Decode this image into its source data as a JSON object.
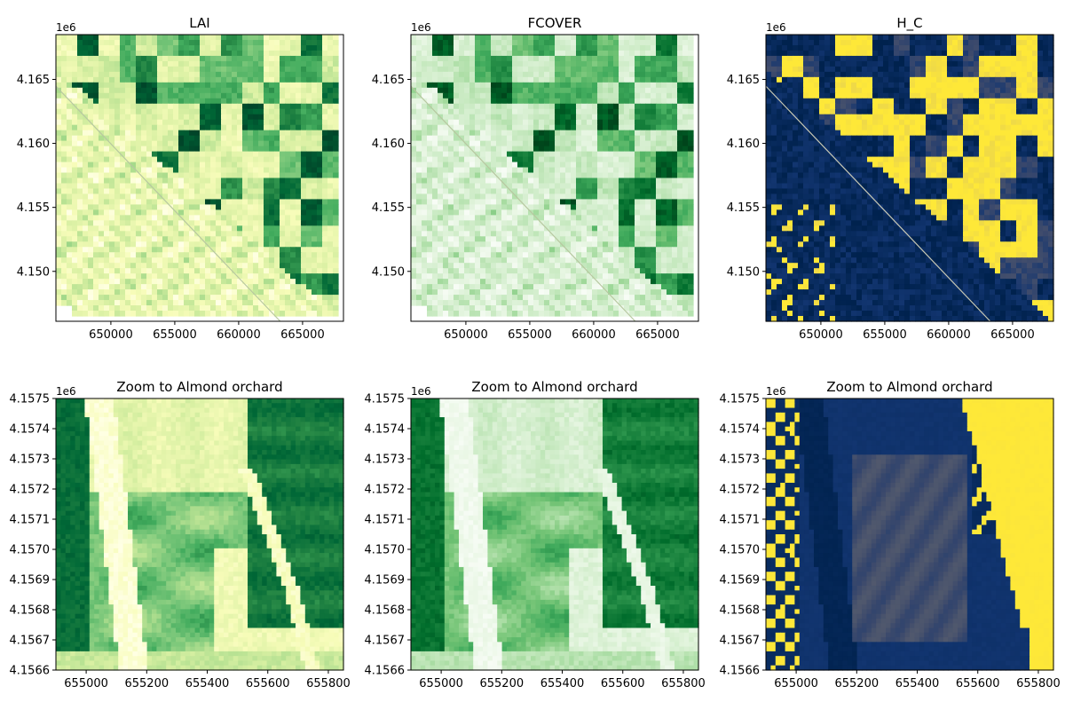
{
  "figure": {
    "background": "#ffffff"
  },
  "colormaps": {
    "YlGn": [
      "#ffffe5",
      "#f7fcb9",
      "#d9f0a3",
      "#addd8e",
      "#78c679",
      "#41ab5d",
      "#238443",
      "#006837",
      "#004529"
    ],
    "Greens": [
      "#f7fcf5",
      "#e5f5e0",
      "#c7e9c0",
      "#a1d99b",
      "#74c476",
      "#41ab5d",
      "#238b45",
      "#006d2c",
      "#00441b"
    ],
    "cividis": [
      "#00224e",
      "#123570",
      "#3b496c",
      "#575d6d",
      "#707173",
      "#8a8678",
      "#a59c74",
      "#c3b369",
      "#e1cc55",
      "#fee838"
    ]
  },
  "chart_data": [
    {
      "type": "heatmap",
      "title": "LAI",
      "colormap": "YlGn",
      "x_ticks": [
        650000,
        655000,
        660000,
        665000
      ],
      "y_ticks": [
        4.15,
        4.155,
        4.16,
        4.165
      ],
      "x_tick_labels": [
        "650000",
        "655000",
        "660000",
        "665000"
      ],
      "y_tick_labels": [
        "4.150",
        "4.155",
        "4.160",
        "4.165"
      ],
      "xlim": [
        645700,
        668200
      ],
      "ylim": [
        4.1461,
        4.1685
      ],
      "y_offset_label": "1e6",
      "grid": false
    },
    {
      "type": "heatmap",
      "title": "FCOVER",
      "colormap": "Greens",
      "x_ticks": [
        650000,
        655000,
        660000,
        665000
      ],
      "y_ticks": [
        4.15,
        4.155,
        4.16,
        4.165
      ],
      "x_tick_labels": [
        "650000",
        "655000",
        "660000",
        "665000"
      ],
      "y_tick_labels": [
        "4.150",
        "4.155",
        "4.160",
        "4.165"
      ],
      "xlim": [
        645700,
        668200
      ],
      "ylim": [
        4.1461,
        4.1685
      ],
      "y_offset_label": "1e6",
      "grid": false
    },
    {
      "type": "heatmap",
      "title": "H_C",
      "colormap": "cividis",
      "x_ticks": [
        650000,
        655000,
        660000,
        665000
      ],
      "y_ticks": [
        4.15,
        4.155,
        4.16,
        4.165
      ],
      "x_tick_labels": [
        "650000",
        "655000",
        "660000",
        "665000"
      ],
      "y_tick_labels": [
        "4.150",
        "4.155",
        "4.160",
        "4.165"
      ],
      "xlim": [
        645700,
        668200
      ],
      "ylim": [
        4.1461,
        4.1685
      ],
      "y_offset_label": "1e6",
      "grid": false
    },
    {
      "type": "heatmap",
      "title": "Zoom to Almond orchard",
      "colormap": "YlGn",
      "x_ticks": [
        655000,
        655200,
        655400,
        655600,
        655800
      ],
      "y_ticks": [
        4.1566,
        4.1567,
        4.1568,
        4.1569,
        4.157,
        4.1571,
        4.1572,
        4.1573,
        4.1574,
        4.1575
      ],
      "x_tick_labels": [
        "655000",
        "655200",
        "655400",
        "655600",
        "655800"
      ],
      "y_tick_labels": [
        "4.1566",
        "4.1567",
        "4.1568",
        "4.1569",
        "4.1570",
        "4.1571",
        "4.1572",
        "4.1573",
        "4.1574",
        "4.1575"
      ],
      "xlim": [
        654900,
        655850
      ],
      "ylim": [
        4.1566,
        4.1575
      ],
      "y_offset_label": "1e6",
      "grid": false
    },
    {
      "type": "heatmap",
      "title": "Zoom to Almond orchard",
      "colormap": "Greens",
      "x_ticks": [
        655000,
        655200,
        655400,
        655600,
        655800
      ],
      "y_ticks": [
        4.1566,
        4.1567,
        4.1568,
        4.1569,
        4.157,
        4.1571,
        4.1572,
        4.1573,
        4.1574,
        4.1575
      ],
      "x_tick_labels": [
        "655000",
        "655200",
        "655400",
        "655600",
        "655800"
      ],
      "y_tick_labels": [
        "4.1566",
        "4.1567",
        "4.1568",
        "4.1569",
        "4.1570",
        "4.1571",
        "4.1572",
        "4.1573",
        "4.1574",
        "4.1575"
      ],
      "xlim": [
        654900,
        655850
      ],
      "ylim": [
        4.1566,
        4.1575
      ],
      "y_offset_label": "1e6",
      "grid": false
    },
    {
      "type": "heatmap",
      "title": "Zoom to Almond orchard",
      "colormap": "cividis",
      "x_ticks": [
        655000,
        655200,
        655400,
        655600,
        655800
      ],
      "y_ticks": [
        4.1566,
        4.1567,
        4.1568,
        4.1569,
        4.157,
        4.1571,
        4.1572,
        4.1573,
        4.1574,
        4.1575
      ],
      "x_tick_labels": [
        "655000",
        "655200",
        "655400",
        "655600",
        "655800"
      ],
      "y_tick_labels": [
        "4.1566",
        "4.1567",
        "4.1568",
        "4.1569",
        "4.1570",
        "4.1571",
        "4.1572",
        "4.1573",
        "4.1574",
        "4.1575"
      ],
      "xlim": [
        654900,
        655850
      ],
      "ylim": [
        4.1566,
        4.1575
      ],
      "y_offset_label": "1e6",
      "grid": false
    }
  ]
}
